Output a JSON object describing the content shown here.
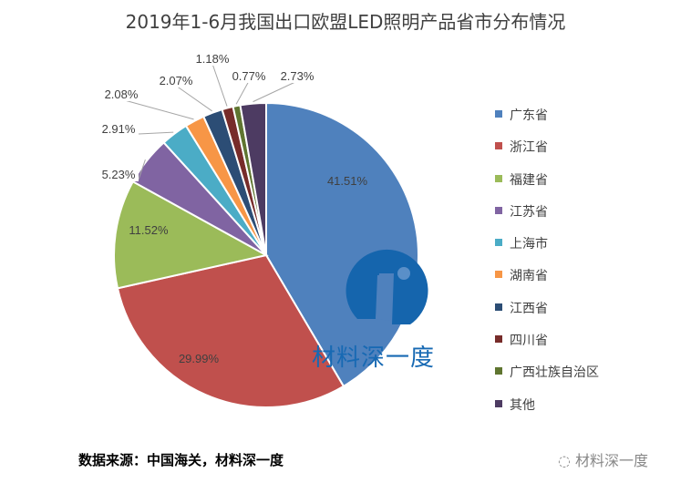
{
  "chart_data": {
    "type": "pie",
    "title": "2019年1-6月我国出口欧盟LED照明产品省市分布情况",
    "categories": [
      "广东省",
      "浙江省",
      "福建省",
      "江苏省",
      "上海市",
      "湖南省",
      "江西省",
      "四川省",
      "广西壮族自治区",
      "其他"
    ],
    "values": [
      41.51,
      29.99,
      11.52,
      5.23,
      2.91,
      2.08,
      2.07,
      1.18,
      0.77,
      2.73
    ],
    "labels": [
      "41.51%",
      "29.99%",
      "11.52%",
      "5.23%",
      "2.91%",
      "2.08%",
      "2.07%",
      "1.18%",
      "0.77%",
      "2.73%"
    ],
    "colors": [
      "#4F81BD",
      "#C0504D",
      "#9BBB59",
      "#8064A2",
      "#4BACC6",
      "#F79646",
      "#2C4D75",
      "#772C2A",
      "#5F7530",
      "#4D3B62"
    ],
    "legend_position": "right"
  },
  "source": "数据来源：中国海关，材料深一度",
  "watermark": "材料深一度",
  "logo_text": "材料深一度"
}
